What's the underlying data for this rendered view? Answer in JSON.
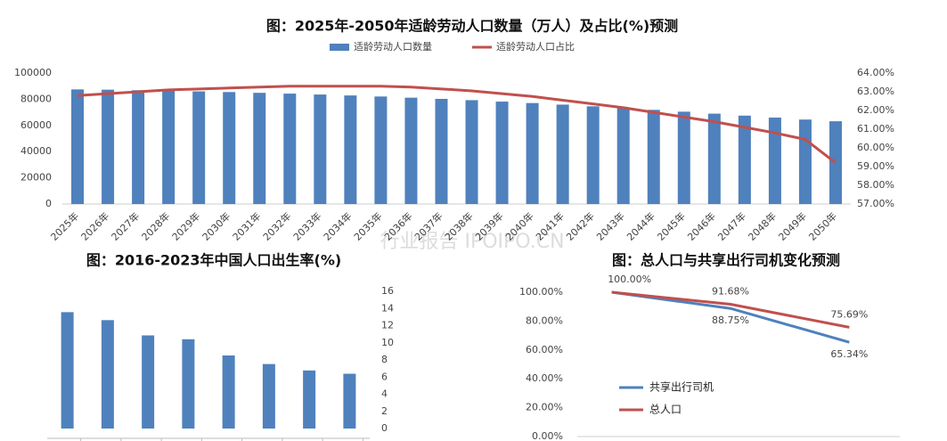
{
  "chart_data": [
    {
      "type": "combo",
      "title": "图：2025年-2050年适龄劳动人口数量（万人）及占比(%)预测",
      "categories": [
        "2025年",
        "2026年",
        "2027年",
        "2028年",
        "2029年",
        "2030年",
        "2031年",
        "2032年",
        "2033年",
        "2034年",
        "2035年",
        "2036年",
        "2037年",
        "2038年",
        "2039年",
        "2040年",
        "2041年",
        "2042年",
        "2043年",
        "2044年",
        "2045年",
        "2046年",
        "2047年",
        "2048年",
        "2049年",
        "2050年"
      ],
      "series": [
        {
          "name": "适龄劳动人口数量",
          "type": "bar",
          "color": "#4f81bd",
          "values": [
            87500,
            87300,
            86900,
            86500,
            86000,
            85500,
            84900,
            84300,
            83600,
            82900,
            82100,
            81200,
            80300,
            79300,
            78200,
            77100,
            75900,
            74600,
            73300,
            71900,
            70500,
            69000,
            67500,
            66000,
            64500,
            63200
          ]
        },
        {
          "name": "适龄劳动人口占比",
          "type": "line",
          "axis": "y2",
          "color": "#c0504d",
          "values": [
            62.8,
            62.9,
            63.0,
            63.1,
            63.15,
            63.2,
            63.25,
            63.3,
            63.3,
            63.3,
            63.3,
            63.25,
            63.15,
            63.05,
            62.9,
            62.75,
            62.55,
            62.35,
            62.15,
            61.9,
            61.65,
            61.4,
            61.1,
            60.8,
            60.45,
            59.2
          ]
        }
      ],
      "ylim": [
        0,
        100000
      ],
      "yticks": [
        0,
        20000,
        40000,
        60000,
        80000,
        100000
      ],
      "y2lim": [
        57,
        64
      ],
      "y2ticks": [
        {
          "value": 57,
          "label": "57.00%"
        },
        {
          "value": 58,
          "label": "58.00%"
        },
        {
          "value": 59,
          "label": "59.00%"
        },
        {
          "value": 60,
          "label": "60.00%"
        },
        {
          "value": 61,
          "label": "61.00%"
        },
        {
          "value": 62,
          "label": "62.00%"
        },
        {
          "value": 63,
          "label": "63.00%"
        },
        {
          "value": 64,
          "label": "64.00%"
        }
      ],
      "legend": "top"
    },
    {
      "type": "bar",
      "title": "图：2016-2023年中国人口出生率(%)",
      "categories": [
        null,
        null,
        null,
        null,
        null,
        null,
        null,
        null
      ],
      "values": [
        13.57,
        12.64,
        10.86,
        10.41,
        8.52,
        7.52,
        6.77,
        6.39
      ],
      "color": "#4f81bd",
      "ylim": [
        0,
        16
      ],
      "yticks": [
        0,
        2,
        4,
        6,
        8,
        10,
        12,
        14,
        16
      ],
      "yaxis_side": "right"
    },
    {
      "type": "line",
      "title": "图：总人口与共享出行司机变化预测",
      "categories": [
        null,
        null,
        null
      ],
      "series": [
        {
          "name": "共享出行司机",
          "color": "#4f81bd",
          "values": [
            100,
            88.75,
            65.34
          ],
          "value_labels": [
            null,
            "88.75%",
            "65.34%"
          ]
        },
        {
          "name": "总人口",
          "color": "#c0504d",
          "values": [
            100,
            91.68,
            75.69
          ],
          "value_labels": [
            "100.00%",
            "91.68%",
            "75.69%"
          ]
        }
      ],
      "ylim": [
        0,
        100
      ],
      "yticks": [
        {
          "value": 0,
          "label": "0.00%"
        },
        {
          "value": 20,
          "label": "20.00%"
        },
        {
          "value": 40,
          "label": "40.00%"
        },
        {
          "value": 60,
          "label": "60.00%"
        },
        {
          "value": 80,
          "label": "80.00%"
        },
        {
          "value": 100,
          "label": "100.00%"
        }
      ],
      "legend": "lower left"
    }
  ],
  "watermark": "行业报告 IPOIPO.CN"
}
